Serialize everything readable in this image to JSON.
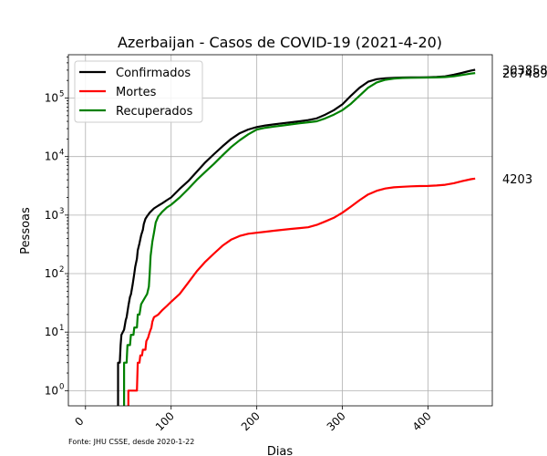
{
  "chart_data": {
    "type": "line",
    "title": "Azerbaijan - Casos de COVID-19 (2021-4-20)",
    "xlabel": "Dias",
    "ylabel": "Pessoas",
    "y_scale": "log",
    "xlim": [
      -20,
      475
    ],
    "ylim": [
      0.55,
      550000
    ],
    "x_ticks": [
      0,
      100,
      200,
      300,
      400
    ],
    "y_ticks": [
      {
        "value": 1,
        "base": "10",
        "exp": "0"
      },
      {
        "value": 10,
        "base": "10",
        "exp": "1"
      },
      {
        "value": 100,
        "base": "10",
        "exp": "2"
      },
      {
        "value": 1000,
        "base": "10",
        "exp": "3"
      },
      {
        "value": 10000,
        "base": "10",
        "exp": "4"
      },
      {
        "value": 100000,
        "base": "10",
        "exp": "5"
      }
    ],
    "grid": true,
    "legend_position": "top-left",
    "source_note": "Fonte: JHU CSSE, desde 2020-1-22",
    "series": [
      {
        "name": "Confirmados",
        "color": "#000000",
        "end_label": "303858",
        "points": [
          [
            38,
            0.3
          ],
          [
            38,
            3
          ],
          [
            40,
            3
          ],
          [
            41,
            6
          ],
          [
            42,
            9
          ],
          [
            45,
            11
          ],
          [
            47,
            16
          ],
          [
            48,
            18
          ],
          [
            50,
            28
          ],
          [
            52,
            40
          ],
          [
            53,
            44
          ],
          [
            55,
            65
          ],
          [
            57,
            100
          ],
          [
            58,
            130
          ],
          [
            60,
            180
          ],
          [
            61,
            250
          ],
          [
            63,
            330
          ],
          [
            65,
            450
          ],
          [
            67,
            560
          ],
          [
            68,
            700
          ],
          [
            70,
            860
          ],
          [
            72,
            960
          ],
          [
            75,
            1100
          ],
          [
            80,
            1300
          ],
          [
            85,
            1450
          ],
          [
            90,
            1600
          ],
          [
            95,
            1800
          ],
          [
            100,
            2000
          ],
          [
            110,
            2800
          ],
          [
            120,
            3800
          ],
          [
            130,
            5500
          ],
          [
            140,
            8000
          ],
          [
            150,
            11000
          ],
          [
            160,
            15000
          ],
          [
            170,
            20000
          ],
          [
            180,
            25000
          ],
          [
            190,
            29000
          ],
          [
            200,
            32000
          ],
          [
            210,
            34000
          ],
          [
            220,
            35500
          ],
          [
            230,
            37000
          ],
          [
            240,
            38500
          ],
          [
            250,
            40000
          ],
          [
            260,
            42000
          ],
          [
            270,
            45000
          ],
          [
            280,
            52000
          ],
          [
            290,
            62000
          ],
          [
            300,
            78000
          ],
          [
            310,
            110000
          ],
          [
            320,
            150000
          ],
          [
            330,
            190000
          ],
          [
            340,
            210000
          ],
          [
            350,
            218000
          ],
          [
            360,
            222000
          ],
          [
            370,
            224000
          ],
          [
            380,
            225000
          ],
          [
            390,
            226000
          ],
          [
            400,
            227000
          ],
          [
            410,
            229000
          ],
          [
            420,
            235000
          ],
          [
            430,
            250000
          ],
          [
            440,
            270000
          ],
          [
            450,
            295000
          ],
          [
            455,
            303858
          ]
        ]
      },
      {
        "name": "Mortes",
        "color": "#ff0000",
        "end_label": "4203",
        "points": [
          [
            50,
            0.3
          ],
          [
            50,
            1
          ],
          [
            55,
            1
          ],
          [
            60,
            1
          ],
          [
            61,
            3
          ],
          [
            63,
            3
          ],
          [
            64,
            4
          ],
          [
            66,
            4
          ],
          [
            67,
            5
          ],
          [
            70,
            5
          ],
          [
            71,
            7
          ],
          [
            73,
            8
          ],
          [
            75,
            10
          ],
          [
            77,
            12
          ],
          [
            78,
            15
          ],
          [
            80,
            18
          ],
          [
            85,
            20
          ],
          [
            90,
            24
          ],
          [
            95,
            28
          ],
          [
            100,
            33
          ],
          [
            110,
            45
          ],
          [
            120,
            70
          ],
          [
            130,
            110
          ],
          [
            140,
            160
          ],
          [
            150,
            220
          ],
          [
            160,
            300
          ],
          [
            170,
            380
          ],
          [
            180,
            440
          ],
          [
            190,
            480
          ],
          [
            200,
            500
          ],
          [
            210,
            520
          ],
          [
            220,
            540
          ],
          [
            230,
            560
          ],
          [
            240,
            580
          ],
          [
            250,
            600
          ],
          [
            260,
            620
          ],
          [
            270,
            680
          ],
          [
            280,
            780
          ],
          [
            290,
            900
          ],
          [
            300,
            1100
          ],
          [
            310,
            1400
          ],
          [
            320,
            1800
          ],
          [
            330,
            2250
          ],
          [
            340,
            2600
          ],
          [
            350,
            2850
          ],
          [
            360,
            2980
          ],
          [
            370,
            3050
          ],
          [
            380,
            3100
          ],
          [
            390,
            3130
          ],
          [
            400,
            3150
          ],
          [
            410,
            3200
          ],
          [
            420,
            3300
          ],
          [
            430,
            3500
          ],
          [
            440,
            3800
          ],
          [
            450,
            4100
          ],
          [
            455,
            4203
          ]
        ]
      },
      {
        "name": "Recuperados",
        "color": "#008000",
        "end_label": "267489",
        "points": [
          [
            45,
            0.3
          ],
          [
            45,
            3
          ],
          [
            48,
            3
          ],
          [
            49,
            6
          ],
          [
            52,
            6
          ],
          [
            53,
            9
          ],
          [
            56,
            9
          ],
          [
            57,
            12
          ],
          [
            60,
            12
          ],
          [
            61,
            20
          ],
          [
            63,
            20
          ],
          [
            65,
            30
          ],
          [
            70,
            40
          ],
          [
            72,
            45
          ],
          [
            74,
            60
          ],
          [
            75,
            100
          ],
          [
            76,
            200
          ],
          [
            78,
            350
          ],
          [
            80,
            500
          ],
          [
            82,
            750
          ],
          [
            85,
            950
          ],
          [
            90,
            1150
          ],
          [
            95,
            1350
          ],
          [
            100,
            1500
          ],
          [
            110,
            2000
          ],
          [
            120,
            2800
          ],
          [
            130,
            4000
          ],
          [
            140,
            5500
          ],
          [
            150,
            7500
          ],
          [
            160,
            10500
          ],
          [
            170,
            14500
          ],
          [
            180,
            19000
          ],
          [
            190,
            24000
          ],
          [
            200,
            29000
          ],
          [
            210,
            31000
          ],
          [
            220,
            32500
          ],
          [
            230,
            34000
          ],
          [
            240,
            35500
          ],
          [
            250,
            37000
          ],
          [
            260,
            38500
          ],
          [
            270,
            40000
          ],
          [
            280,
            45000
          ],
          [
            290,
            52000
          ],
          [
            300,
            62000
          ],
          [
            310,
            80000
          ],
          [
            320,
            110000
          ],
          [
            330,
            150000
          ],
          [
            340,
            185000
          ],
          [
            350,
            205000
          ],
          [
            360,
            215000
          ],
          [
            370,
            220000
          ],
          [
            380,
            222000
          ],
          [
            390,
            223000
          ],
          [
            400,
            224000
          ],
          [
            410,
            225000
          ],
          [
            420,
            228000
          ],
          [
            430,
            235000
          ],
          [
            440,
            248000
          ],
          [
            450,
            262000
          ],
          [
            455,
            267489
          ]
        ]
      }
    ]
  }
}
